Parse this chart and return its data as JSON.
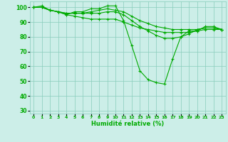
{
  "title": "",
  "xlabel": "Humidité relative (%)",
  "ylabel": "",
  "background_color": "#cceee8",
  "grid_color": "#88ccbb",
  "line_color": "#00aa00",
  "xlim": [
    -0.5,
    23.5
  ],
  "ylim": [
    28,
    104
  ],
  "yticks": [
    30,
    40,
    50,
    60,
    70,
    80,
    90,
    100
  ],
  "xticks": [
    0,
    1,
    2,
    3,
    4,
    5,
    6,
    7,
    8,
    9,
    10,
    11,
    12,
    13,
    14,
    15,
    16,
    17,
    18,
    19,
    20,
    21,
    22,
    23
  ],
  "series": [
    [
      100,
      101,
      98,
      97,
      95,
      97,
      97,
      99,
      99,
      101,
      101,
      91,
      74,
      57,
      51,
      49,
      48,
      65,
      80,
      84,
      84,
      87,
      87,
      85
    ],
    [
      100,
      100,
      98,
      97,
      95,
      94,
      93,
      92,
      92,
      92,
      92,
      90,
      88,
      86,
      85,
      84,
      83,
      83,
      83,
      83,
      84,
      85,
      85,
      85
    ],
    [
      100,
      100,
      98,
      97,
      96,
      96,
      96,
      96,
      96,
      97,
      97,
      95,
      91,
      87,
      84,
      81,
      79,
      79,
      80,
      82,
      85,
      86,
      86,
      85
    ],
    [
      100,
      100,
      98,
      97,
      96,
      96,
      96,
      97,
      98,
      99,
      98,
      97,
      94,
      91,
      89,
      87,
      86,
      85,
      85,
      85,
      85,
      86,
      86,
      85
    ]
  ],
  "figsize": [
    3.2,
    2.0
  ],
  "dpi": 100
}
